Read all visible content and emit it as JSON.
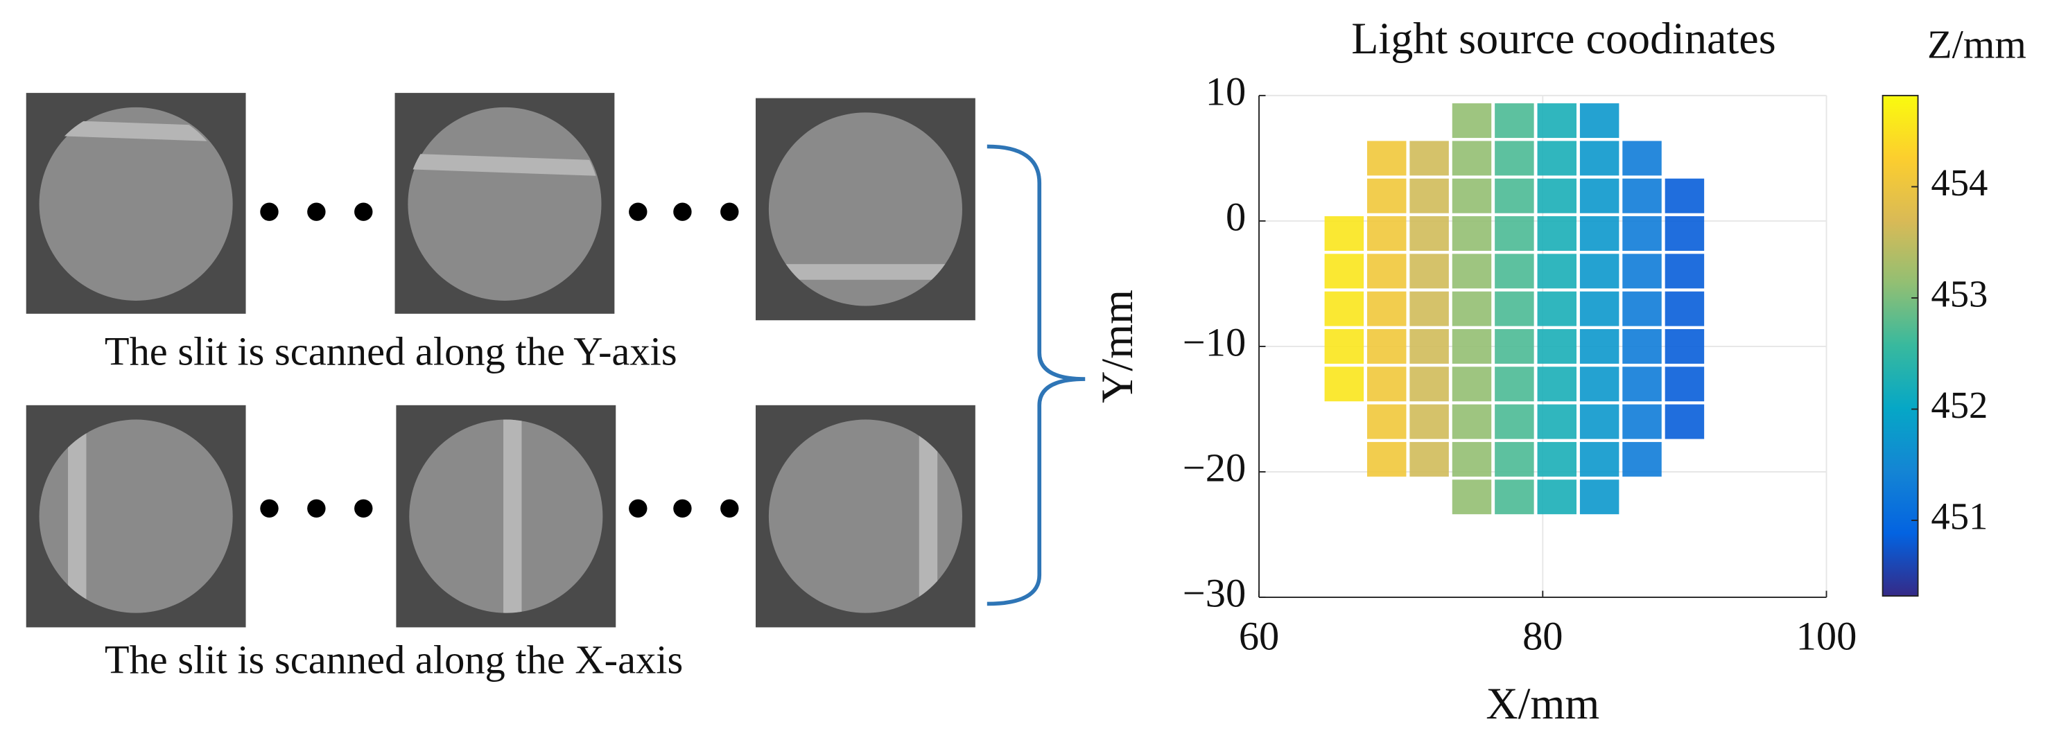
{
  "left_panel": {
    "caption_y": "The slit is scanned along the Y-axis",
    "caption_x": "The slit is scanned along the X-axis"
  },
  "chart_data": {
    "type": "scatter",
    "title": "Light source coodinates",
    "xlabel": "X/mm",
    "ylabel": "Y/mm",
    "xlim": [
      60,
      100
    ],
    "xticks": [
      60,
      80,
      100
    ],
    "ylim": [
      -30,
      10
    ],
    "yticks": [
      {
        "value": -30,
        "label": "−30"
      },
      {
        "value": -20,
        "label": "−20"
      },
      {
        "value": -10,
        "label": "−10"
      },
      0,
      10
    ],
    "grid": true,
    "x": [
      66,
      66,
      66,
      66,
      66,
      69,
      69,
      69,
      69,
      69,
      69,
      69,
      69,
      69,
      72,
      72,
      72,
      72,
      72,
      72,
      72,
      72,
      72,
      75,
      75,
      75,
      75,
      75,
      75,
      75,
      75,
      75,
      75,
      75,
      78,
      78,
      78,
      78,
      78,
      78,
      78,
      78,
      78,
      78,
      78,
      81,
      81,
      81,
      81,
      81,
      81,
      81,
      81,
      81,
      81,
      81,
      84,
      84,
      84,
      84,
      84,
      84,
      84,
      84,
      84,
      84,
      84,
      87,
      87,
      87,
      87,
      87,
      87,
      87,
      87,
      87,
      90,
      90,
      90,
      90,
      90,
      90,
      90
    ],
    "values": [
      -13,
      -10,
      -7,
      -4,
      -1,
      -19,
      -16,
      -13,
      -10,
      -7,
      -4,
      -1,
      2,
      5,
      -19,
      -16,
      -13,
      -10,
      -7,
      -4,
      -1,
      2,
      5,
      -22,
      -19,
      -16,
      -13,
      -10,
      -7,
      -4,
      -1,
      2,
      5,
      8,
      -22,
      -19,
      -16,
      -13,
      -10,
      -7,
      -4,
      -1,
      2,
      5,
      8,
      -22,
      -19,
      -16,
      -13,
      -10,
      -7,
      -4,
      -1,
      2,
      5,
      8,
      -22,
      -19,
      -16,
      -13,
      -10,
      -7,
      -4,
      -1,
      2,
      5,
      8,
      -19,
      -16,
      -13,
      -10,
      -7,
      -4,
      -1,
      2,
      5,
      -16,
      -13,
      -10,
      -7,
      -4,
      -1,
      2
    ],
    "z": [
      454.55,
      454.55,
      454.55,
      454.55,
      454.55,
      454.08,
      454.08,
      454.08,
      454.08,
      454.08,
      454.08,
      454.08,
      454.08,
      454.08,
      453.62,
      453.62,
      453.62,
      453.62,
      453.62,
      453.62,
      453.62,
      453.62,
      453.62,
      453.15,
      453.15,
      453.15,
      453.15,
      453.15,
      453.15,
      453.15,
      453.15,
      453.15,
      453.15,
      453.15,
      452.69,
      452.69,
      452.69,
      452.69,
      452.69,
      452.69,
      452.69,
      452.69,
      452.69,
      452.69,
      452.69,
      452.22,
      452.22,
      452.22,
      452.22,
      452.22,
      452.22,
      452.22,
      452.22,
      452.22,
      452.22,
      452.22,
      451.76,
      451.76,
      451.76,
      451.76,
      451.76,
      451.76,
      451.76,
      451.76,
      451.76,
      451.76,
      451.76,
      451.29,
      451.29,
      451.29,
      451.29,
      451.29,
      451.29,
      451.29,
      451.29,
      451.29,
      450.83,
      450.83,
      450.83,
      450.83,
      450.83,
      450.83,
      450.83
    ],
    "colormap": [
      "#352a87",
      "#0363e1",
      "#1485d4",
      "#06a7c6",
      "#38b99e",
      "#92bf73",
      "#d9ba56",
      "#fcce2e",
      "#f9fb0e"
    ],
    "colorbar": {
      "label": "Z/mm",
      "lim": [
        450.32,
        454.82
      ],
      "ticks": [
        451,
        452,
        453,
        454
      ]
    }
  }
}
